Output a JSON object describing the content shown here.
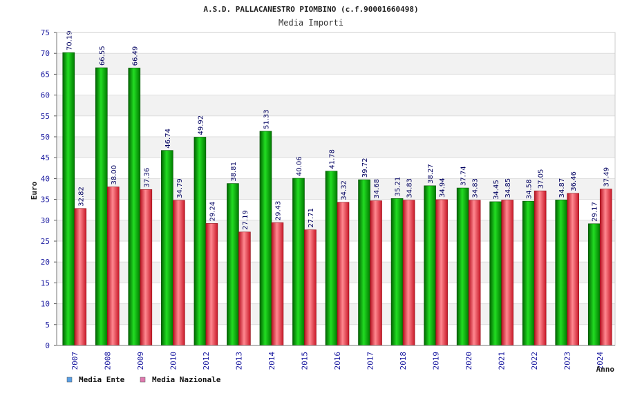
{
  "chart_data": {
    "type": "bar",
    "title": "A.S.D. PALLACANESTRO PIOMBINO (c.f.90001660498)",
    "subtitle": "Media Importi",
    "xlabel": "Anno",
    "ylabel": "Euro",
    "ylim": [
      0,
      75
    ],
    "yticks": [
      "0",
      "5",
      "10",
      "15",
      "20",
      "25",
      "30",
      "35",
      "40",
      "45",
      "50",
      "55",
      "60",
      "65",
      "70",
      "75"
    ],
    "categories": [
      "2007",
      "2008",
      "2009",
      "2010",
      "2012",
      "2013",
      "2014",
      "2015",
      "2016",
      "2017",
      "2018",
      "2019",
      "2020",
      "2021",
      "2022",
      "2023",
      "2024"
    ],
    "series": [
      {
        "name": "Media Ente",
        "color": "#00b000",
        "values": [
          70.19,
          66.55,
          66.49,
          46.74,
          49.92,
          38.81,
          51.33,
          40.06,
          41.78,
          39.72,
          35.21,
          38.27,
          37.74,
          34.45,
          34.58,
          34.87,
          29.17
        ],
        "labels": [
          "70.19",
          "66.55",
          "66.49",
          "46.74",
          "49.92",
          "38.81",
          "51.33",
          "40.06",
          "41.78",
          "39.72",
          "35.21",
          "38.27",
          "37.74",
          "34.45",
          "34.58",
          "34.87",
          "29.17"
        ]
      },
      {
        "name": "Media Nazionale",
        "color": "#e83040",
        "values": [
          32.82,
          38.0,
          37.36,
          34.79,
          29.24,
          27.19,
          29.43,
          27.71,
          34.32,
          34.68,
          34.83,
          34.94,
          34.83,
          34.85,
          37.05,
          36.46,
          37.49
        ],
        "labels": [
          "32.82",
          "38.00",
          "37.36",
          "34.79",
          "29.24",
          "27.19",
          "29.43",
          "27.71",
          "34.32",
          "34.68",
          "34.83",
          "34.94",
          "34.83",
          "34.85",
          "37.05",
          "36.46",
          "37.49"
        ]
      }
    ],
    "legend": {
      "placement": "bottom-left",
      "entries": [
        {
          "label": "Media Ente",
          "swatch_color": "#5aa0e6"
        },
        {
          "label": "Media Nazionale",
          "swatch_color": "#e07ab0"
        }
      ]
    },
    "grid": true,
    "grid_band_color": "#f2f2f2",
    "data_label_color": "#000060",
    "tick_label_color": "#1a1aa0"
  }
}
